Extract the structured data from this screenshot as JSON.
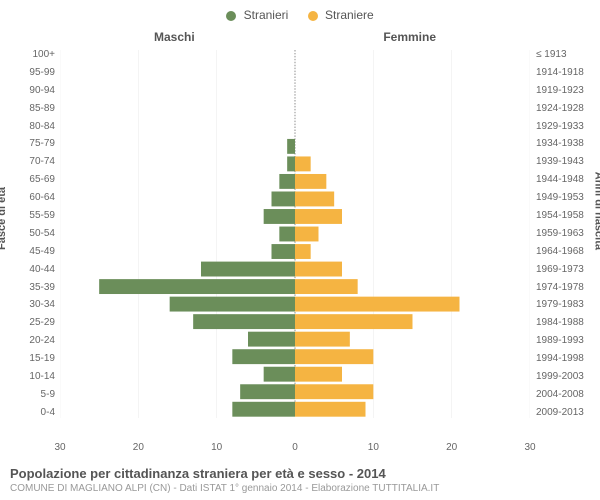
{
  "legend": {
    "male": {
      "label": "Stranieri",
      "color": "#6b8e5a"
    },
    "female": {
      "label": "Straniere",
      "color": "#f5b442"
    }
  },
  "gender_headers": {
    "male": "Maschi",
    "female": "Femmine"
  },
  "axis_titles": {
    "left": "Fasce di età",
    "right": "Anni di nascita"
  },
  "chart": {
    "type": "population-pyramid",
    "x_max": 30,
    "x_ticks": [
      30,
      20,
      10,
      0,
      10,
      20,
      30
    ],
    "background_color": "#ffffff",
    "grid_color": "#e5e5e5",
    "center_line_color": "#888888",
    "bar_gap_ratio": 0.15,
    "age_bins": [
      {
        "age": "100+",
        "birth": "≤ 1913",
        "m": 0,
        "f": 0
      },
      {
        "age": "95-99",
        "birth": "1914-1918",
        "m": 0,
        "f": 0
      },
      {
        "age": "90-94",
        "birth": "1919-1923",
        "m": 0,
        "f": 0
      },
      {
        "age": "85-89",
        "birth": "1924-1928",
        "m": 0,
        "f": 0
      },
      {
        "age": "80-84",
        "birth": "1929-1933",
        "m": 0,
        "f": 0
      },
      {
        "age": "75-79",
        "birth": "1934-1938",
        "m": 1,
        "f": 0
      },
      {
        "age": "70-74",
        "birth": "1939-1943",
        "m": 1,
        "f": 2
      },
      {
        "age": "65-69",
        "birth": "1944-1948",
        "m": 2,
        "f": 4
      },
      {
        "age": "60-64",
        "birth": "1949-1953",
        "m": 3,
        "f": 5
      },
      {
        "age": "55-59",
        "birth": "1954-1958",
        "m": 4,
        "f": 6
      },
      {
        "age": "50-54",
        "birth": "1959-1963",
        "m": 2,
        "f": 3
      },
      {
        "age": "45-49",
        "birth": "1964-1968",
        "m": 3,
        "f": 2
      },
      {
        "age": "40-44",
        "birth": "1969-1973",
        "m": 12,
        "f": 6
      },
      {
        "age": "35-39",
        "birth": "1974-1978",
        "m": 25,
        "f": 8
      },
      {
        "age": "30-34",
        "birth": "1979-1983",
        "m": 16,
        "f": 21
      },
      {
        "age": "25-29",
        "birth": "1984-1988",
        "m": 13,
        "f": 15
      },
      {
        "age": "20-24",
        "birth": "1989-1993",
        "m": 6,
        "f": 7
      },
      {
        "age": "15-19",
        "birth": "1994-1998",
        "m": 8,
        "f": 10
      },
      {
        "age": "10-14",
        "birth": "1999-2003",
        "m": 4,
        "f": 6
      },
      {
        "age": "5-9",
        "birth": "2004-2008",
        "m": 7,
        "f": 10
      },
      {
        "age": "0-4",
        "birth": "2009-2013",
        "m": 8,
        "f": 9
      }
    ]
  },
  "footer": {
    "title": "Popolazione per cittadinanza straniera per età e sesso - 2014",
    "subtitle": "COMUNE DI MAGLIANO ALPI (CN) - Dati ISTAT 1° gennaio 2014 - Elaborazione TUTTITALIA.IT"
  }
}
